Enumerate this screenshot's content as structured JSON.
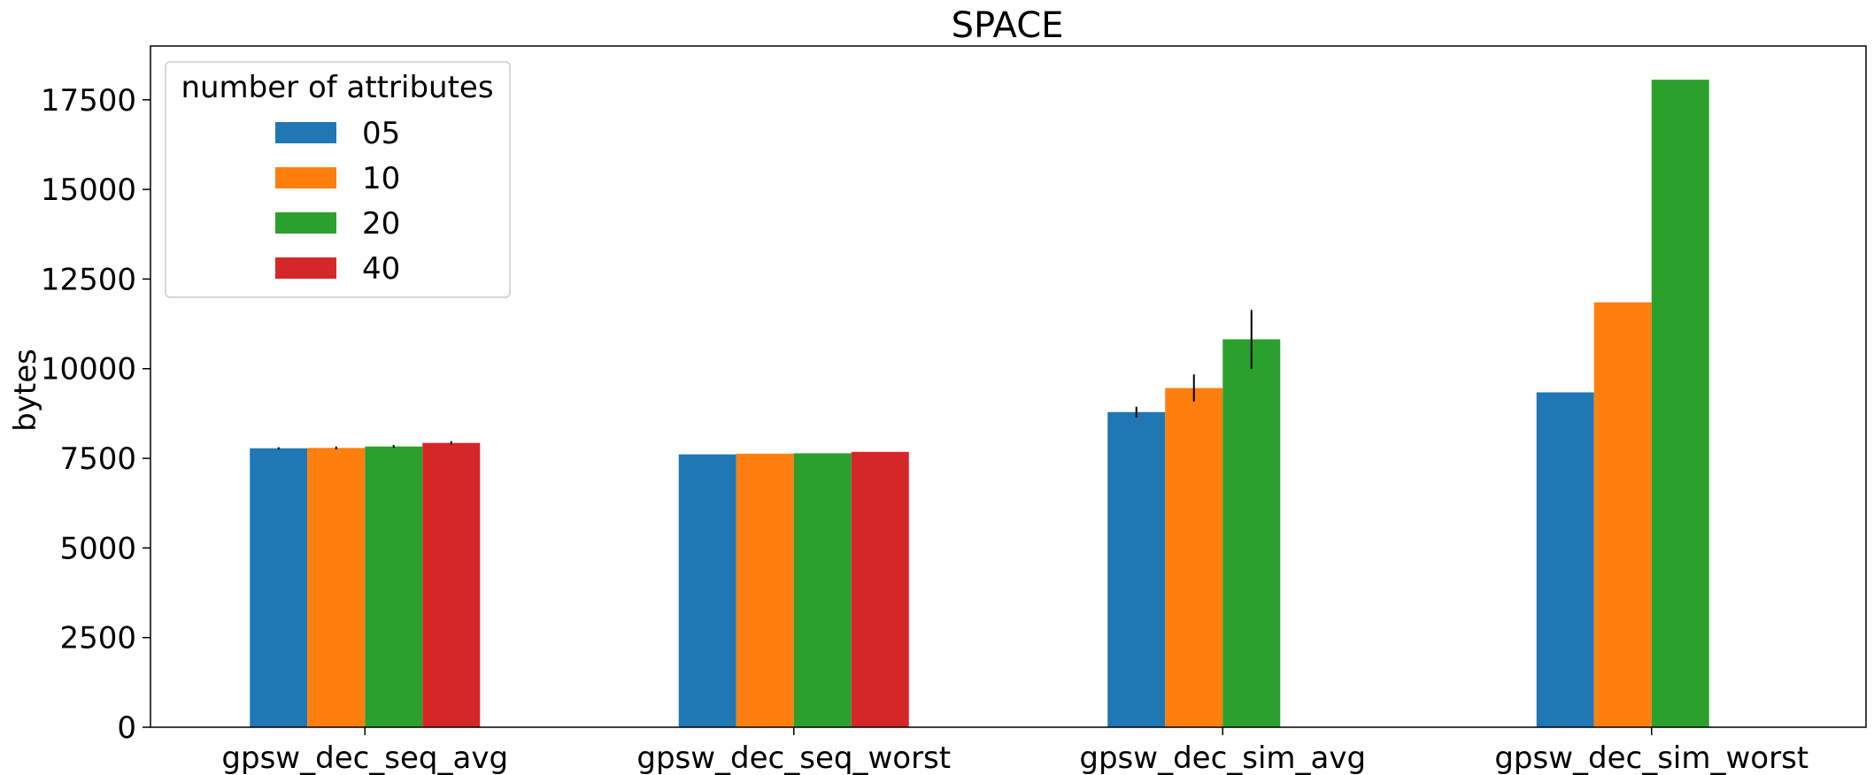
{
  "chart_data": {
    "type": "bar",
    "title": "SPACE",
    "xlabel": "",
    "ylabel": "bytes",
    "ylim": [
      0,
      19000
    ],
    "yticks": [
      0,
      2500,
      5000,
      7500,
      10000,
      12500,
      15000,
      17500
    ],
    "ytick_labels": [
      "0",
      "2500",
      "5000",
      "7500",
      "10000",
      "12500",
      "15000",
      "17500"
    ],
    "grid": false,
    "categories": [
      "gpsw_dec_seq_avg",
      "gpsw_dec_seq_worst",
      "gpsw_dec_sim_avg",
      "gpsw_dec_sim_worst"
    ],
    "legend": {
      "title": "number of attributes",
      "placement": "upper-left"
    },
    "series": [
      {
        "name": "05",
        "color": "#1f77b4",
        "values": [
          7780,
          7610,
          8790,
          9340
        ],
        "errors": [
          30,
          0,
          150,
          0
        ]
      },
      {
        "name": "10",
        "color": "#ff7f0e",
        "values": [
          7790,
          7630,
          9460,
          11850
        ],
        "errors": [
          40,
          0,
          380,
          0
        ]
      },
      {
        "name": "20",
        "color": "#2ca02c",
        "values": [
          7830,
          7640,
          10820,
          18060
        ],
        "errors": [
          40,
          0,
          820,
          0
        ]
      },
      {
        "name": "40",
        "color": "#d62728",
        "values": [
          7930,
          7680,
          null,
          null
        ],
        "errors": [
          50,
          0,
          null,
          null
        ]
      }
    ]
  }
}
